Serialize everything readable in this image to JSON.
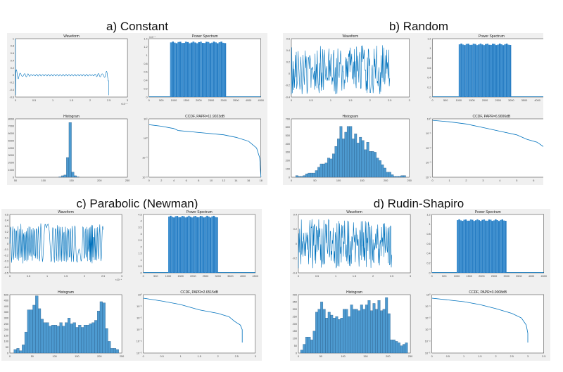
{
  "chart_data": [
    {
      "panel_title": "a) Constant",
      "waveform": {
        "type": "line",
        "title": "Waveform",
        "pattern": "constant",
        "xlim": [
          0,
          3
        ],
        "ylim": [
          -0.6,
          1
        ],
        "xticks": [
          "0",
          "0.5",
          "1",
          "1.5",
          "2",
          "2.5",
          "3"
        ],
        "yticks": [
          "-0.6",
          "-0.4",
          "-0.2",
          "0",
          "0.2",
          "0.4",
          "0.6",
          "0.8",
          "1"
        ],
        "xexp": "×10⁻⁴"
      },
      "spectrum": {
        "type": "bar",
        "title": "Power Spectrum",
        "xlim": [
          0,
          4500
        ],
        "ylim": [
          0,
          1.4
        ],
        "band": [
          850,
          3100
        ],
        "level": 1.33,
        "xticks": [
          "0",
          "500",
          "1000",
          "1500",
          "2000",
          "2500",
          "3000",
          "3500",
          "4000",
          "4500"
        ],
        "yticks": [
          "0",
          "0.2",
          "0.4",
          "0.6",
          "0.8",
          "1",
          "1.2",
          "1.4"
        ],
        "yexp": "×10⁻⁴"
      },
      "histogram": {
        "type": "bar",
        "title": "Histogram",
        "xlim": [
          40,
          260
        ],
        "ylim": [
          0,
          8000
        ],
        "bin_start": 125,
        "bin_width": 5,
        "values": [
          50,
          200,
          300,
          2700,
          7500,
          700,
          200,
          50
        ],
        "xticks": [
          "50",
          "100",
          "150",
          "200",
          "250"
        ],
        "yticks": [
          "0",
          "1000",
          "2000",
          "3000",
          "4000",
          "5000",
          "6000",
          "7000",
          "8000"
        ]
      },
      "ccdf": {
        "type": "line",
        "title": "CCDF, PAPR=11.9023dB",
        "xlim": [
          0,
          18
        ],
        "ylog": [
          -2,
          1
        ],
        "points": [
          [
            0,
            0.7
          ],
          [
            2,
            0.62
          ],
          [
            4,
            0.5
          ],
          [
            4.7,
            0.4
          ],
          [
            8,
            0.3
          ],
          [
            12,
            0.18
          ],
          [
            14,
            0.05
          ],
          [
            16,
            -0.15
          ],
          [
            17.3,
            -0.5
          ],
          [
            17.8,
            -1
          ],
          [
            18,
            -2
          ]
        ],
        "xticks": [
          "0",
          "2",
          "4",
          "6",
          "8",
          "10",
          "12",
          "14",
          "16",
          "18"
        ],
        "yticks": [
          "10⁻²",
          "10⁻¹",
          "10⁰",
          "10¹"
        ]
      }
    },
    {
      "panel_title": "b) Random",
      "waveform": {
        "type": "line",
        "title": "Waveform",
        "pattern": "random",
        "xlim": [
          0,
          3
        ],
        "ylim": [
          -0.5,
          0.6
        ],
        "xticks": [
          "0",
          "0.5",
          "1",
          "1.5",
          "2",
          "2.5",
          "3"
        ],
        "yticks": [
          "-0.4",
          "-0.2",
          "0",
          "0.2",
          "0.4",
          "0.6"
        ],
        "xexp": ""
      },
      "spectrum": {
        "type": "bar",
        "title": "Power Spectrum",
        "xlim": [
          0,
          4500
        ],
        "ylim": [
          0,
          1.2
        ],
        "band": [
          1000,
          3000
        ],
        "level": 1.1,
        "xticks": [
          "0",
          "500",
          "1000",
          "1500",
          "2000",
          "2500",
          "3000",
          "3500",
          "4000",
          "4500"
        ],
        "yticks": [
          "0",
          "0.2",
          "0.4",
          "0.6",
          "0.8",
          "1",
          "1.2"
        ],
        "yexp": ""
      },
      "histogram": {
        "type": "bar",
        "title": "Histogram",
        "xlim": [
          -10,
          265
        ],
        "ylim": [
          0,
          700
        ],
        "bin_start": 0,
        "bin_width": 5.7,
        "values": [
          20,
          10,
          10,
          20,
          40,
          50,
          50,
          50,
          80,
          120,
          160,
          160,
          170,
          230,
          220,
          280,
          370,
          460,
          610,
          460,
          540,
          610,
          610,
          460,
          520,
          410,
          480,
          440,
          330,
          420,
          310,
          310,
          300,
          230,
          200,
          150,
          110,
          60,
          60,
          30,
          10,
          10,
          10,
          20,
          20
        ],
        "xticks": [
          "0",
          "50",
          "100",
          "150",
          "200",
          "250"
        ],
        "yticks": [
          "0",
          "100",
          "200",
          "300",
          "400",
          "500",
          "600",
          "700"
        ]
      },
      "ccdf": {
        "type": "line",
        "title": "CCDF, PAPR=6.9006dB",
        "xlim": [
          0,
          7
        ],
        "ylog": [
          -4,
          0
        ],
        "points": [
          [
            0,
            -0.1
          ],
          [
            1,
            -0.2
          ],
          [
            2,
            -0.35
          ],
          [
            3,
            -0.6
          ],
          [
            4,
            -0.85
          ],
          [
            5,
            -1.1
          ],
          [
            5.6,
            -1.4
          ],
          [
            6.2,
            -1.6
          ],
          [
            6.7,
            -2.0
          ],
          [
            6.95,
            -2.4
          ],
          [
            7,
            -3.3
          ]
        ],
        "xticks": [
          "0",
          "1",
          "2",
          "3",
          "4",
          "5",
          "6",
          "7"
        ],
        "yticks": [
          "10⁻⁴",
          "10⁻³",
          "10⁻²",
          "10⁻¹",
          "10⁰"
        ]
      }
    },
    {
      "panel_title": "c) Parabolic (Newman)",
      "waveform": {
        "type": "line",
        "title": "Waveform",
        "pattern": "chirp",
        "xlim": [
          0,
          3
        ],
        "ylim": [
          -0.6,
          0.6
        ],
        "xticks": [
          "0",
          "0.5",
          "1",
          "1.5",
          "2",
          "2.5",
          "3"
        ],
        "yticks": [
          "-0.5",
          "-0.4",
          "-0.3",
          "-0.2",
          "-0.1",
          "0",
          "0.1",
          "0.2",
          "0.3",
          "0.4",
          "0.5"
        ],
        "xexp": "×10⁻⁴"
      },
      "spectrum": {
        "type": "bar",
        "title": "Power Spectrum",
        "xlim": [
          0,
          4500
        ],
        "ylim": [
          0,
          4.5
        ],
        "band": [
          1000,
          3000
        ],
        "level": 4.4,
        "xticks": [
          "0",
          "500",
          "1000",
          "1500",
          "2000",
          "2500",
          "3000",
          "3500",
          "4000",
          "4500"
        ],
        "yticks": [
          "0",
          "0.5",
          "1",
          "1.5",
          "2",
          "2.5",
          "3",
          "3.5",
          "4",
          "4.5"
        ],
        "yexp": ""
      },
      "histogram": {
        "type": "bar",
        "title": "Histogram",
        "xlim": [
          -10,
          265
        ],
        "ylim": [
          0,
          500
        ],
        "bin_start": 0,
        "bin_width": 6.6,
        "values": [
          30,
          40,
          20,
          70,
          180,
          370,
          370,
          410,
          490,
          380,
          290,
          260,
          260,
          230,
          240,
          240,
          230,
          260,
          230,
          260,
          300,
          250,
          260,
          220,
          240,
          220,
          240,
          240,
          250,
          260,
          280,
          360,
          440,
          430,
          210,
          100,
          40,
          40,
          30
        ],
        "xticks": [
          "0",
          "50",
          "100",
          "150",
          "200",
          "250"
        ],
        "yticks": [
          "0",
          "50",
          "100",
          "150",
          "200",
          "250",
          "300",
          "350",
          "400",
          "450",
          "500"
        ]
      },
      "ccdf": {
        "type": "line",
        "title": "CCDF, PAPR=2.6515dB",
        "xlim": [
          0,
          3
        ],
        "ylog": [
          -5,
          0
        ],
        "points": [
          [
            0,
            -0.3
          ],
          [
            0.5,
            -0.55
          ],
          [
            1,
            -0.85
          ],
          [
            1.5,
            -1.3
          ],
          [
            2,
            -1.6
          ],
          [
            2.3,
            -1.9
          ],
          [
            2.45,
            -2.3
          ],
          [
            2.6,
            -2.6
          ],
          [
            2.65,
            -3.0
          ],
          [
            2.65,
            -4.1
          ]
        ],
        "xticks": [
          "0",
          "0.5",
          "1",
          "1.5",
          "2",
          "2.5",
          "3"
        ],
        "yticks": [
          "10⁻⁵",
          "10⁻⁴",
          "10⁻³",
          "10⁻²",
          "10⁻¹",
          "10⁰"
        ]
      }
    },
    {
      "panel_title": "d) Rudin-Shapiro",
      "waveform": {
        "type": "line",
        "title": "Waveform",
        "pattern": "random2",
        "xlim": [
          0,
          3
        ],
        "ylim": [
          -0.5,
          0.5
        ],
        "xticks": [
          "0",
          "0.5",
          "1",
          "1.5",
          "2",
          "2.5",
          "3"
        ],
        "yticks": [
          "-0.4",
          "-0.2",
          "0",
          "0.2",
          "0.4"
        ],
        "xexp": ""
      },
      "spectrum": {
        "type": "bar",
        "title": "Power Spectrum",
        "xlim": [
          0,
          4500
        ],
        "ylim": [
          0,
          1.2
        ],
        "band": [
          1000,
          3000
        ],
        "level": 1.1,
        "xticks": [
          "0",
          "500",
          "1000",
          "1500",
          "2000",
          "2500",
          "3000",
          "3500",
          "4000",
          "4500"
        ],
        "yticks": [
          "0",
          "0.2",
          "0.4",
          "0.6",
          "0.8",
          "1",
          "1.2"
        ],
        "yexp": ""
      },
      "histogram": {
        "type": "bar",
        "title": "Histogram",
        "xlim": [
          -5,
          260
        ],
        "ylim": [
          0,
          400
        ],
        "bin_start": 0,
        "bin_width": 5.9,
        "values": [
          20,
          60,
          110,
          110,
          90,
          150,
          280,
          300,
          350,
          300,
          240,
          280,
          260,
          240,
          250,
          230,
          240,
          300,
          300,
          250,
          330,
          300,
          300,
          290,
          330,
          300,
          330,
          360,
          290,
          340,
          300,
          360,
          290,
          300,
          380,
          270,
          90,
          90,
          80,
          70,
          50,
          60,
          70
        ],
        "xticks": [
          "0",
          "50",
          "100",
          "150",
          "200",
          "250"
        ],
        "yticks": [
          "0",
          "50",
          "100",
          "150",
          "200",
          "250",
          "300",
          "350",
          "400"
        ]
      },
      "ccdf": {
        "type": "line",
        "title": "CCDF, PAPR=3.0008dB",
        "xlim": [
          0,
          3.5
        ],
        "ylog": [
          -5,
          0
        ],
        "points": [
          [
            0,
            -0.3
          ],
          [
            0.5,
            -0.45
          ],
          [
            1,
            -0.6
          ],
          [
            1.5,
            -0.85
          ],
          [
            2,
            -1.2
          ],
          [
            2.5,
            -1.6
          ],
          [
            2.8,
            -2.0
          ],
          [
            2.95,
            -2.6
          ],
          [
            3,
            -3.3
          ],
          [
            3,
            -4.1
          ]
        ],
        "xticks": [
          "0",
          "0.5",
          "1",
          "1.5",
          "2",
          "2.5",
          "3",
          "3.5"
        ],
        "yticks": [
          "10⁻⁵",
          "10⁻⁴",
          "10⁻³",
          "10⁻²",
          "10⁻¹",
          "10⁰"
        ]
      }
    }
  ],
  "colors": {
    "line": "#0072BD",
    "bar": "#4D9AD0",
    "bar_edge": "#1F4E79",
    "figure_bg": "#F0F0F0"
  }
}
